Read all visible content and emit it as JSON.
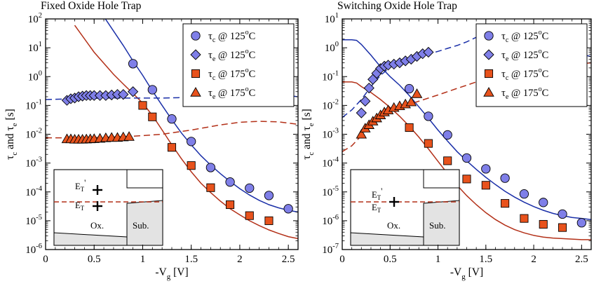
{
  "chart_data": [
    {
      "type": "scatter",
      "title": "Fixed Oxide Hole Trap",
      "xlabel": "-V",
      "xlabel_sub": "g",
      "xlabel_unit": " [V]",
      "ylabel": "τc and τe [s]",
      "xlim": [
        0,
        2.6
      ],
      "ylim_exp": [
        -6,
        2
      ],
      "yscale": "log",
      "x_ticks": [
        0,
        0.5,
        1,
        1.5,
        2,
        2.5
      ],
      "x_tick_labels": [
        "0",
        "0.5",
        "1",
        "1.5",
        "2",
        "2.5"
      ],
      "y_tick_exponents": [
        -6,
        -5,
        -4,
        -3,
        -2,
        -1,
        0,
        1,
        2
      ],
      "legend_position": "top-right",
      "series": [
        {
          "name": "τc @ 125oC",
          "label_main": "τ",
          "label_sub": "c",
          "label_rest": " @ 125",
          "label_sup": "o",
          "label_end": "C",
          "marker": "circle",
          "color": "#7f7fe8",
          "x": [
            0.9,
            1.1,
            1.3,
            1.5,
            1.7,
            1.9,
            2.1,
            2.3,
            2.5
          ],
          "y": [
            2.8,
            0.35,
            0.034,
            0.0056,
            0.0007,
            0.00022,
            0.000135,
            7.5e-05,
            2.6e-05
          ]
        },
        {
          "name": "τe @ 125oC",
          "label_main": "τ",
          "label_sub": "e",
          "label_rest": " @ 125",
          "label_sup": "o",
          "label_end": "C",
          "marker": "diamond",
          "color": "#7f7fe8",
          "x": [
            0.22,
            0.26,
            0.3,
            0.34,
            0.38,
            0.42,
            0.46,
            0.5,
            0.56,
            0.62,
            0.68,
            0.74,
            0.8,
            0.9
          ],
          "y": [
            0.15,
            0.17,
            0.18,
            0.2,
            0.21,
            0.22,
            0.22,
            0.22,
            0.22,
            0.22,
            0.23,
            0.24,
            0.24,
            0.3
          ]
        },
        {
          "name": "τc @ 175oC",
          "label_main": "τ",
          "label_sub": "c",
          "label_rest": " @ 175",
          "label_sup": "o",
          "label_end": "C",
          "marker": "square",
          "color": "#e8521c",
          "x": [
            1.0,
            1.1,
            1.3,
            1.5,
            1.7,
            1.9,
            2.1,
            2.3
          ],
          "y": [
            0.1,
            0.04,
            0.0035,
            0.00082,
            0.00014,
            3.6e-05,
            1.5e-05,
            1e-05
          ]
        },
        {
          "name": "τe @ 175oC",
          "label_main": "τ",
          "label_sub": "e",
          "label_rest": " @ 175",
          "label_sup": "o",
          "label_end": "C",
          "marker": "triangle",
          "color": "#e8521c",
          "x": [
            0.22,
            0.26,
            0.3,
            0.34,
            0.38,
            0.42,
            0.46,
            0.5,
            0.56,
            0.62,
            0.68,
            0.74,
            0.8,
            0.86
          ],
          "y": [
            0.0068,
            0.0068,
            0.0066,
            0.0066,
            0.0066,
            0.0067,
            0.0068,
            0.0069,
            0.0071,
            0.0074,
            0.0076,
            0.0076,
            0.0079,
            0.0082
          ]
        }
      ],
      "fit_lines": [
        {
          "color": "#1a2fa8",
          "dashed": false,
          "x": [
            0.6,
            0.8,
            0.9,
            1.0,
            1.1,
            1.2,
            1.3,
            1.4,
            1.5,
            1.6,
            1.7,
            1.8,
            1.9,
            2.0,
            2.1,
            2.2,
            2.3,
            2.4,
            2.5,
            2.6
          ],
          "y": [
            120,
            12,
            3.5,
            1.1,
            0.32,
            0.1,
            0.032,
            0.011,
            0.0043,
            0.0018,
            0.00085,
            0.00043,
            0.00023,
            0.00013,
            7.8e-05,
            5.1e-05,
            3.6e-05,
            2.8e-05,
            2.3e-05,
            2e-05
          ]
        },
        {
          "color": "#b33018",
          "dashed": false,
          "x": [
            0.3,
            0.5,
            0.7,
            0.8,
            0.9,
            1.0,
            1.1,
            1.2,
            1.3,
            1.4,
            1.5,
            1.6,
            1.7,
            1.8,
            1.9,
            2.0,
            2.1,
            2.2,
            2.3,
            2.4,
            2.5,
            2.6
          ],
          "y": [
            60,
            7,
            1.2,
            0.55,
            0.26,
            0.12,
            0.045,
            0.014,
            0.0043,
            0.0014,
            0.0005,
            0.0002,
            9.5e-05,
            4.8e-05,
            2.6e-05,
            1.6e-05,
            1e-05,
            6.8e-06,
            4.8e-06,
            3.6e-06,
            2.8e-06,
            2.4e-06
          ]
        },
        {
          "color": "#1a2fa8",
          "dashed": true,
          "x": [
            0,
            0.3,
            0.6,
            0.9,
            1.2,
            1.5,
            1.8,
            2.1,
            2.4,
            2.6
          ],
          "y": [
            0.16,
            0.17,
            0.18,
            0.18,
            0.18,
            0.19,
            0.22,
            0.25,
            0.24,
            0.2
          ]
        },
        {
          "color": "#b33018",
          "dashed": true,
          "x": [
            0,
            0.3,
            0.6,
            0.9,
            1.2,
            1.5,
            1.8,
            2.0,
            2.2,
            2.4,
            2.6
          ],
          "y": [
            0.0075,
            0.0075,
            0.0078,
            0.0085,
            0.01,
            0.014,
            0.021,
            0.026,
            0.028,
            0.027,
            0.022
          ]
        }
      ],
      "inset": {
        "type": "fixed",
        "et_prime": "E",
        "et_prime_sub": "T",
        "et_prime_mark": "'",
        "et": "E",
        "et_sub": "T",
        "ox_label": "Ox.",
        "sub_label": "Sub."
      }
    },
    {
      "type": "scatter",
      "title": "Switching Oxide Hole Trap",
      "xlabel": "-V",
      "xlabel_sub": "g",
      "xlabel_unit": " [V]",
      "ylabel": "τc and τe [s]",
      "xlim": [
        0,
        2.6
      ],
      "ylim_exp": [
        -7,
        1
      ],
      "yscale": "log",
      "x_ticks": [
        0,
        0.5,
        1,
        1.5,
        2,
        2.5
      ],
      "x_tick_labels": [
        "0",
        "0.5",
        "1",
        "1.5",
        "2",
        "2.5"
      ],
      "y_tick_exponents": [
        -7,
        -6,
        -5,
        -4,
        -3,
        -2,
        -1,
        0,
        1
      ],
      "legend_position": "top-right",
      "series": [
        {
          "name": "τc @ 125oC",
          "label_main": "τ",
          "label_sub": "c",
          "label_rest": " @ 125",
          "label_sup": "o",
          "label_end": "C",
          "marker": "circle",
          "color": "#7f7fe8",
          "x": [
            0.7,
            0.9,
            1.1,
            1.3,
            1.5,
            1.7,
            1.9,
            2.1,
            2.3,
            2.5
          ],
          "y": [
            0.038,
            0.0042,
            0.00095,
            0.00015,
            6.3e-05,
            3e-05,
            8.5e-06,
            4.3e-06,
            1.7e-06,
            8.5e-07
          ]
        },
        {
          "name": "τe @ 125oC",
          "label_main": "τ",
          "label_sub": "e",
          "label_rest": " @ 125",
          "label_sup": "o",
          "label_end": "C",
          "marker": "diamond",
          "color": "#7f7fe8",
          "x": [
            0.2,
            0.24,
            0.28,
            0.32,
            0.36,
            0.4,
            0.44,
            0.48,
            0.54,
            0.6,
            0.66,
            0.72,
            0.78,
            0.84,
            0.9
          ],
          "y": [
            0.0055,
            0.014,
            0.04,
            0.08,
            0.13,
            0.19,
            0.23,
            0.25,
            0.27,
            0.3,
            0.35,
            0.4,
            0.5,
            0.62,
            0.7
          ]
        },
        {
          "name": "τc @ 175oC",
          "label_main": "τ",
          "label_sub": "c",
          "label_rest": " @ 175",
          "label_sup": "o",
          "label_end": "C",
          "marker": "square",
          "color": "#e8521c",
          "x": [
            0.7,
            0.9,
            1.1,
            1.3,
            1.5,
            1.7,
            1.9,
            2.1,
            2.3
          ],
          "y": [
            0.0017,
            0.00048,
            0.00012,
            2.8e-05,
            1.7e-05,
            4e-06,
            1.2e-06,
            7.5e-07,
            5.8e-07
          ]
        },
        {
          "name": "τe @ 175oC",
          "label_main": "τ",
          "label_sub": "e",
          "label_rest": " @ 175",
          "label_sup": "o",
          "label_end": "C",
          "marker": "triangle",
          "color": "#e8521c",
          "x": [
            0.2,
            0.24,
            0.28,
            0.32,
            0.36,
            0.4,
            0.44,
            0.48,
            0.54,
            0.6,
            0.66,
            0.72,
            0.78
          ],
          "y": [
            0.00098,
            0.0016,
            0.0021,
            0.0028,
            0.0036,
            0.0046,
            0.0058,
            0.0068,
            0.0083,
            0.0095,
            0.011,
            0.013,
            0.025
          ]
        }
      ],
      "fit_lines": [
        {
          "color": "#1a2fa8",
          "dashed": false,
          "x": [
            0,
            0.1,
            0.15,
            0.2,
            0.3,
            0.4,
            0.5,
            0.6,
            0.7,
            0.8,
            0.9,
            1.0,
            1.1,
            1.2,
            1.3,
            1.4,
            1.5,
            1.6,
            1.7,
            1.8,
            1.9,
            2.0,
            2.1,
            2.2,
            2.3,
            2.4,
            2.5,
            2.6
          ],
          "y": [
            1.9,
            1.9,
            1.8,
            1.3,
            0.55,
            0.22,
            0.1,
            0.05,
            0.022,
            0.009,
            0.0036,
            0.0014,
            0.00058,
            0.00025,
            0.00012,
            6e-05,
            3.2e-05,
            1.8e-05,
            1.05e-05,
            6.6e-06,
            4.4e-06,
            3.1e-06,
            2.3e-06,
            1.8e-06,
            1.5e-06,
            1.3e-06,
            1.2e-06,
            1.1e-06
          ]
        },
        {
          "color": "#b33018",
          "dashed": false,
          "x": [
            0,
            0.1,
            0.15,
            0.2,
            0.3,
            0.4,
            0.5,
            0.6,
            0.7,
            0.8,
            0.9,
            1.0,
            1.1,
            1.2,
            1.3,
            1.4,
            1.5,
            1.6,
            1.7,
            1.8,
            1.9,
            2.0,
            2.1,
            2.2,
            2.3,
            2.4,
            2.5,
            2.6
          ],
          "y": [
            0.065,
            0.065,
            0.06,
            0.045,
            0.028,
            0.016,
            0.0085,
            0.0042,
            0.0019,
            0.0008,
            0.00031,
            0.000115,
            4.3e-05,
            1.7e-05,
            7.4e-06,
            3.6e-06,
            1.9e-06,
            1.1e-06,
            7e-07,
            4.9e-07,
            3.8e-07,
            3.1e-07,
            2.7e-07,
            2.5e-07,
            2.4e-07,
            2.3e-07,
            2.2e-07,
            2.2e-07
          ]
        },
        {
          "color": "#1a2fa8",
          "dashed": true,
          "x": [
            0,
            0.1,
            0.2,
            0.3,
            0.4,
            0.5,
            0.6,
            0.7,
            0.8,
            0.9,
            1.0,
            1.1,
            1.2,
            1.3,
            1.4,
            1.5,
            1.6,
            1.7,
            1.8,
            1.9,
            2.0,
            2.1,
            2.2,
            2.3,
            2.4,
            2.5,
            2.6
          ],
          "y": [
            0.0038,
            0.007,
            0.016,
            0.045,
            0.11,
            0.21,
            0.3,
            0.38,
            0.47,
            0.6,
            0.75,
            0.95,
            1.2,
            1.6,
            2.3,
            3.3,
            4.2,
            4.4,
            4.0,
            3.3,
            2.5,
            1.8,
            1.3,
            0.95,
            0.72,
            0.58,
            0.5
          ]
        },
        {
          "color": "#b33018",
          "dashed": true,
          "x": [
            0,
            0.1,
            0.2,
            0.3,
            0.4,
            0.5,
            0.6,
            0.7,
            0.8,
            0.9,
            1.0,
            1.1,
            1.2,
            1.3,
            1.4,
            1.5,
            1.6,
            1.7,
            1.8,
            1.9,
            2.0,
            2.1,
            2.2,
            2.3,
            2.4,
            2.5,
            2.6
          ],
          "y": [
            0.00025,
            0.0004,
            0.0009,
            0.0022,
            0.0044,
            0.0065,
            0.0085,
            0.011,
            0.014,
            0.018,
            0.023,
            0.03,
            0.039,
            0.05,
            0.065,
            0.082,
            0.1,
            0.12,
            0.14,
            0.16,
            0.18,
            0.2,
            0.22,
            0.24,
            0.26,
            0.28,
            0.3
          ]
        }
      ],
      "inset": {
        "type": "switching",
        "et_prime": "E",
        "et_prime_sub": "T",
        "et_prime_mark": "'",
        "et": "E",
        "et_sub": "T",
        "ox_label": "Ox.",
        "sub_label": "Sub."
      }
    }
  ]
}
